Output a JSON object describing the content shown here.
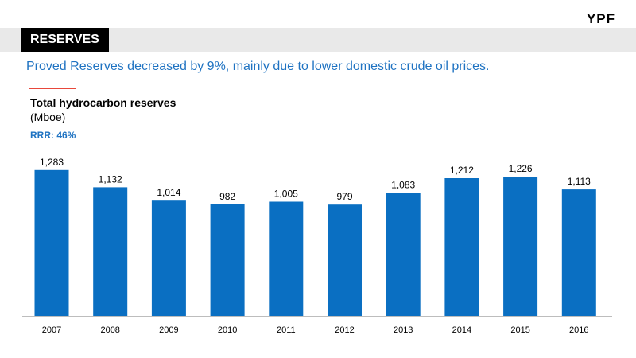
{
  "brand": {
    "logo_text": "YPF"
  },
  "section": {
    "tag": "RESERVES"
  },
  "headline": "Proved Reserves decreased by 9%, mainly due to lower domestic crude oil prices.",
  "colors": {
    "accent": "#1f73c2",
    "bar": "#0a6fc2",
    "rule": "#e8483b",
    "band": "#e9e9e9"
  },
  "chart_data": {
    "type": "bar",
    "title": "Total hydrocarbon reserves",
    "unit": "(Mboe)",
    "note": "RRR: 46%",
    "categories": [
      "2007",
      "2008",
      "2009",
      "2010",
      "2011",
      "2012",
      "2013",
      "2014",
      "2015",
      "2016"
    ],
    "values": [
      1283,
      1132,
      1014,
      982,
      1005,
      979,
      1083,
      1212,
      1226,
      1113
    ],
    "value_labels": [
      "1,283",
      "1,132",
      "1,014",
      "982",
      "1,005",
      "979",
      "1,083",
      "1,212",
      "1,226",
      "1,113"
    ],
    "ylim": [
      0,
      1450
    ],
    "grid": false,
    "legend": "none"
  }
}
